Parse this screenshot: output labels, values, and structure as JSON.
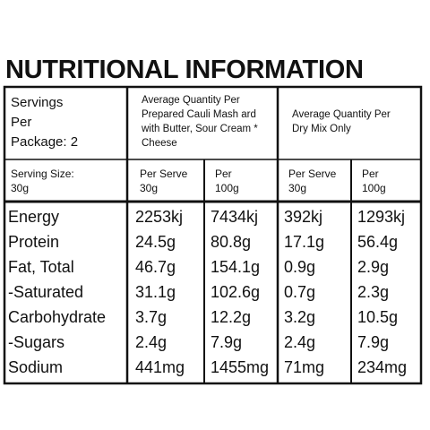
{
  "title": "NUTRITIONAL INFORMATION",
  "header": {
    "servings": [
      "Servings",
      "Per",
      "Package: 2"
    ],
    "prepared": "Average Quantity Per Prepared Cauli Mash ard with Butter, Sour Cream * Cheese",
    "dry": "Average Quantity Per Dry Mix Only"
  },
  "subheader": [
    [
      "Serving Size:",
      "30g"
    ],
    [
      "Per Serve",
      "30g"
    ],
    [
      "Per",
      "100g"
    ],
    [
      "Per Serve",
      "30g"
    ],
    [
      "Per",
      "100g"
    ]
  ],
  "table": {
    "rows": [
      [
        "Energy",
        "2253kj",
        "7434kj",
        "392kj",
        "1293kj"
      ],
      [
        "Protein",
        "24.5g",
        "80.8g",
        "17.1g",
        "56.4g"
      ],
      [
        "Fat, Total",
        "46.7g",
        "154.1g",
        "0.9g",
        "2.9g"
      ],
      [
        "-Saturated",
        "31.1g",
        "102.6g",
        "0.7g",
        "2.3g"
      ],
      [
        "Carbohydrate",
        "3.7g",
        "12.2g",
        "3.2g",
        "10.5g"
      ],
      [
        "-Sugars",
        "2.4g",
        "7.9g",
        "2.4g",
        "7.9g"
      ],
      [
        "Sodium",
        "441mg",
        "1455mg",
        "71mg",
        "234mg"
      ]
    ]
  }
}
